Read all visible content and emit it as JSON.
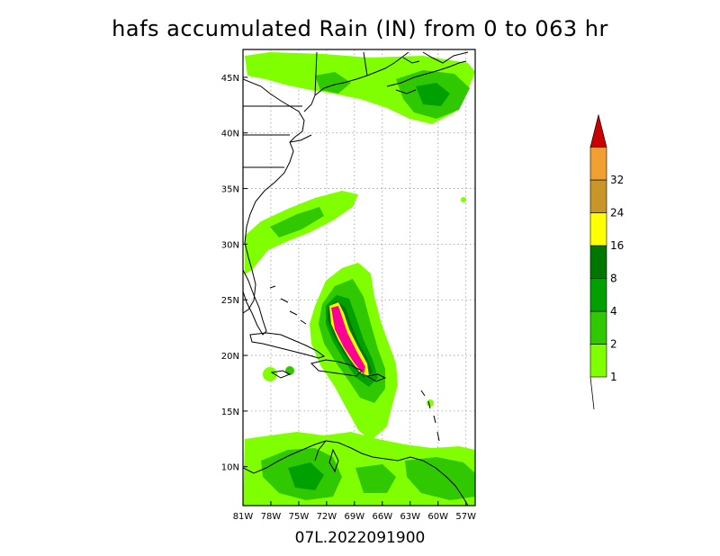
{
  "title": "hafs accumulated Rain (IN) from 0 to 063 hr",
  "subtitle": "07L.2022091900",
  "map": {
    "lon_range": [
      -81,
      -56
    ],
    "lat_range": [
      6.5,
      47.5
    ],
    "lon_ticks": [
      "81W",
      "78W",
      "75W",
      "72W",
      "69W",
      "66W",
      "63W",
      "60W",
      "57W"
    ],
    "lat_ticks": [
      "10N",
      "15N",
      "20N",
      "25N",
      "30N",
      "35N",
      "40N",
      "45N"
    ],
    "grid": true
  },
  "colorbar": {
    "levels": [
      "1",
      "2",
      "4",
      "8",
      "16",
      "24",
      "32"
    ],
    "colors": [
      "#80ff00",
      "#30c800",
      "#00a000",
      "#007800",
      "#ffff00",
      "#c89628",
      "#f0a030",
      "#c80000"
    ]
  }
}
